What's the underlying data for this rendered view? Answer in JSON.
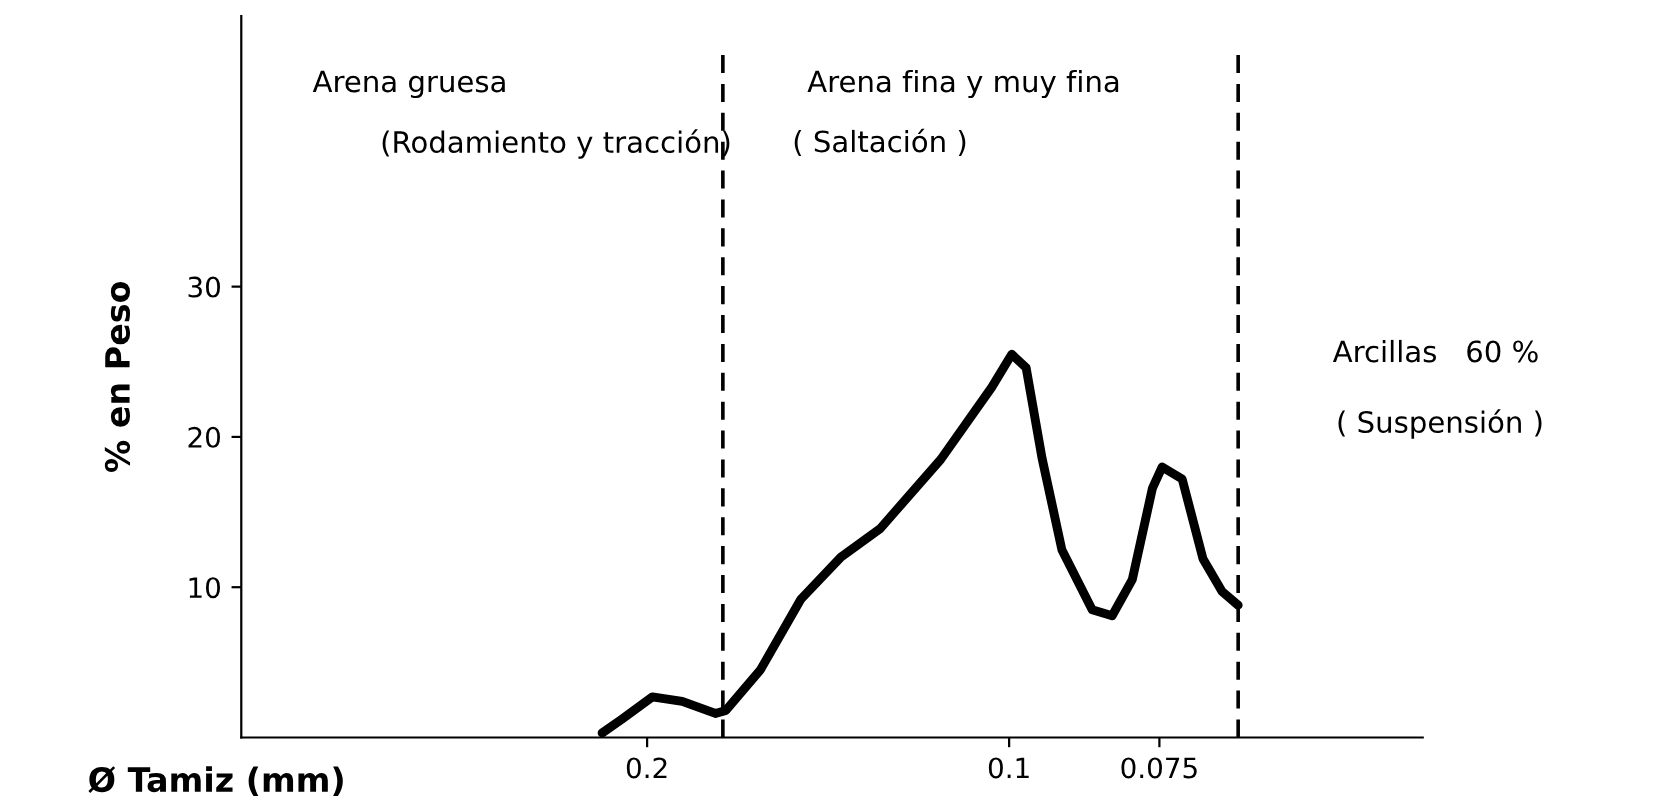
{
  "chart_data": {
    "type": "line",
    "xlabel": "Ø Tamiz (mm)",
    "ylabel": "% en Peso",
    "log": "x",
    "xlim": [
      0.435,
      0.0453
    ],
    "xticks": [
      0.2,
      0.1,
      0.075
    ],
    "ylim": [
      0,
      48
    ],
    "yticks": [
      10,
      20,
      30
    ],
    "grid": false,
    "legend": false,
    "marker": "none",
    "line_style": "solid",
    "series": [
      {
        "color": "#000000",
        "x": [
          0.218,
          0.21,
          0.198,
          0.187,
          0.1755,
          0.172,
          0.161,
          0.149,
          0.138,
          0.128,
          0.114,
          0.1034,
          0.0995,
          0.0968,
          0.0939,
          0.0904,
          0.0853,
          0.0821,
          0.079,
          0.076,
          0.0746,
          0.0718,
          0.069,
          0.0665,
          0.0645
        ],
        "values": [
          0.3,
          1.2,
          2.7,
          2.4,
          1.6,
          1.8,
          4.5,
          9.2,
          12,
          13.9,
          18.5,
          23.3,
          25.5,
          24.6,
          18.6,
          12.5,
          8.5,
          8.1,
          10.5,
          16.6,
          18,
          17.2,
          11.9,
          9.7,
          8.8
        ]
      }
    ],
    "ref_lines": [
      {
        "axis": "x",
        "value": 0.173,
        "label": null,
        "line_style": "dashed",
        "color": "#000000"
      },
      {
        "axis": "x",
        "value": 0.0645,
        "label": null,
        "line_style": "dashed",
        "color": "#000000"
      }
    ],
    "annotations": [
      "Arena gruesa",
      "(Rodamiento y tracción)",
      "Arena fina y muy fina",
      "( Saltación )",
      "Arcillas   60 %",
      "( Suspensión )"
    ]
  }
}
